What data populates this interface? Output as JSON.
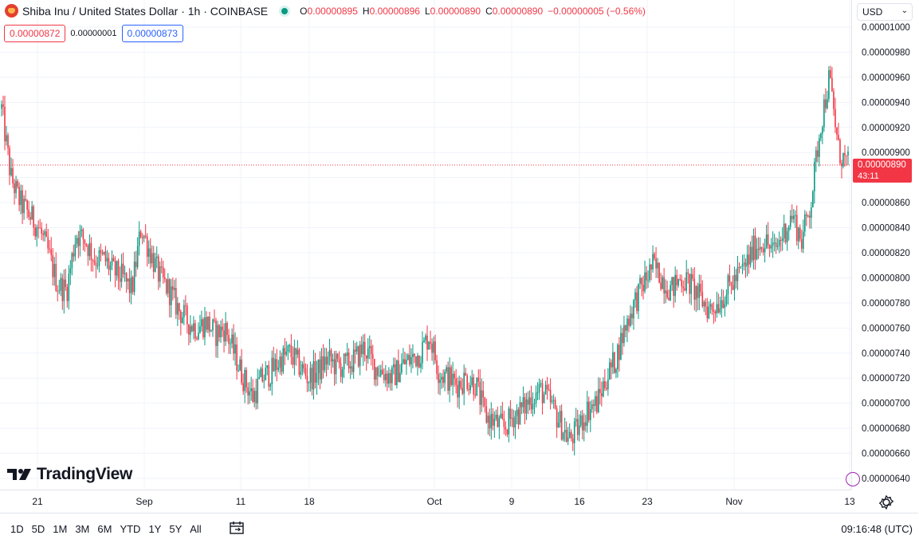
{
  "header": {
    "title": "Shiba Inu / United States Dollar · 1h · COINBASE",
    "ohlc": {
      "o_label": "O",
      "o": "0.00000895",
      "h_label": "H",
      "h": "0.00000896",
      "l_label": "L",
      "l": "0.00000890",
      "c_label": "C",
      "c": "0.00000890",
      "change": "−0.00000005 (−0.56%)"
    }
  },
  "trade": {
    "sell": "0.00000872",
    "spread": "0.00000001",
    "buy": "0.00000873"
  },
  "currency": "USD",
  "last_price": {
    "value": "0.00000890",
    "countdown": "43:11"
  },
  "price_ticks": [
    "0.00001000",
    "0.00000980",
    "0.00000960",
    "0.00000940",
    "0.00000920",
    "0.00000900",
    "0.00000880",
    "0.00000860",
    "0.00000840",
    "0.00000820",
    "0.00000800",
    "0.00000780",
    "0.00000760",
    "0.00000740",
    "0.00000720",
    "0.00000700",
    "0.00000680",
    "0.00000660",
    "0.00000640"
  ],
  "time_ticks": [
    "21",
    "Sep",
    "11",
    "18",
    "Oct",
    "9",
    "16",
    "23",
    "Nov",
    "13"
  ],
  "ranges": [
    "1D",
    "5D",
    "1M",
    "3M",
    "6M",
    "YTD",
    "1Y",
    "5Y",
    "All"
  ],
  "clock": "09:16:48 (UTC)",
  "logo_text": "TradingView",
  "colors": {
    "up": "#089981",
    "down": "#f23645",
    "grid": "#f0f3fa",
    "last_line": "#f23645"
  },
  "chart_data": {
    "type": "candlestick",
    "title": "Shiba Inu / United States Dollar · 1h · COINBASE",
    "ylim": [
      6.3e-06,
      1.003e-05
    ],
    "x_ticks": [
      "21",
      "Sep",
      "11",
      "18",
      "Oct",
      "9",
      "16",
      "23",
      "Nov",
      "13"
    ],
    "close_path": [
      [
        0,
        9.35e-06
      ],
      [
        1,
        8.8e-06
      ],
      [
        2,
        8.6e-06
      ],
      [
        3,
        8.5e-06
      ],
      [
        4,
        8.4e-06
      ],
      [
        5,
        8.2e-06
      ],
      [
        6,
        7.95e-06
      ],
      [
        7,
        7.9e-06
      ],
      [
        8,
        8.35e-06
      ],
      [
        9,
        8.3e-06
      ],
      [
        10,
        8.15e-06
      ],
      [
        11,
        8.15e-06
      ],
      [
        12,
        8.05e-06
      ],
      [
        13,
        8e-06
      ],
      [
        14,
        7.9e-06
      ],
      [
        15,
        8.4e-06
      ],
      [
        16,
        8.2e-06
      ],
      [
        17,
        8e-06
      ],
      [
        18,
        7.9e-06
      ],
      [
        19,
        7.75e-06
      ],
      [
        20,
        7.65e-06
      ],
      [
        21,
        7.6e-06
      ],
      [
        22,
        7.65e-06
      ],
      [
        23,
        7.55e-06
      ],
      [
        24,
        7.6e-06
      ],
      [
        25,
        7.4e-06
      ],
      [
        26,
        7.2e-06
      ],
      [
        27,
        7.05e-06
      ],
      [
        28,
        7.2e-06
      ],
      [
        29,
        7.25e-06
      ],
      [
        30,
        7.35e-06
      ],
      [
        31,
        7.4e-06
      ],
      [
        32,
        7.3e-06
      ],
      [
        33,
        7.2e-06
      ],
      [
        34,
        7.25e-06
      ],
      [
        35,
        7.35e-06
      ],
      [
        36,
        7.3e-06
      ],
      [
        37,
        7.3e-06
      ],
      [
        38,
        7.35e-06
      ],
      [
        39,
        7.45e-06
      ],
      [
        40,
        7.3e-06
      ],
      [
        41,
        7.25e-06
      ],
      [
        42,
        7.2e-06
      ],
      [
        43,
        7.3e-06
      ],
      [
        44,
        7.35e-06
      ],
      [
        45,
        7.4e-06
      ],
      [
        46,
        7.55e-06
      ],
      [
        47,
        7.25e-06
      ],
      [
        48,
        7.2e-06
      ],
      [
        49,
        7.15e-06
      ],
      [
        50,
        7.2e-06
      ],
      [
        51,
        7.15e-06
      ],
      [
        52,
        6.9e-06
      ],
      [
        53,
        6.85e-06
      ],
      [
        54,
        6.8e-06
      ],
      [
        55,
        6.9e-06
      ],
      [
        56,
        6.95e-06
      ],
      [
        57,
        7.05e-06
      ],
      [
        58,
        7.1e-06
      ],
      [
        59,
        7e-06
      ],
      [
        60,
        6.85e-06
      ],
      [
        61,
        6.7e-06
      ],
      [
        62,
        6.8e-06
      ],
      [
        63,
        6.95e-06
      ],
      [
        64,
        7e-06
      ],
      [
        65,
        7.2e-06
      ],
      [
        66,
        7.35e-06
      ],
      [
        67,
        7.6e-06
      ],
      [
        68,
        7.8e-06
      ],
      [
        69,
        7.95e-06
      ],
      [
        70,
        8.1e-06
      ],
      [
        71,
        8e-06
      ],
      [
        72,
        7.9e-06
      ],
      [
        73,
        8e-06
      ],
      [
        74,
        7.95e-06
      ],
      [
        75,
        7.85e-06
      ],
      [
        76,
        7.75e-06
      ],
      [
        77,
        7.8e-06
      ],
      [
        78,
        7.9e-06
      ],
      [
        79,
        8e-06
      ],
      [
        80,
        8.1e-06
      ],
      [
        81,
        8.25e-06
      ],
      [
        82,
        8.3e-06
      ],
      [
        83,
        8.2e-06
      ],
      [
        84,
        8.35e-06
      ],
      [
        85,
        8.5e-06
      ],
      [
        86,
        8.3e-06
      ],
      [
        87,
        8.6e-06
      ],
      [
        88,
        9.2e-06
      ],
      [
        89,
        9.6e-06
      ],
      [
        90,
        9e-06
      ],
      [
        91,
        8.9e-06
      ]
    ]
  }
}
